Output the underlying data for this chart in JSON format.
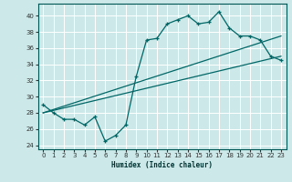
{
  "xlabel": "Humidex (Indice chaleur)",
  "background_color": "#cce8e8",
  "grid_color": "#ffffff",
  "line_color": "#006666",
  "xlim": [
    -0.5,
    23.5
  ],
  "ylim": [
    23.5,
    41.5
  ],
  "yticks": [
    24,
    26,
    28,
    30,
    32,
    34,
    36,
    38,
    40
  ],
  "xticks": [
    0,
    1,
    2,
    3,
    4,
    5,
    6,
    7,
    8,
    9,
    10,
    11,
    12,
    13,
    14,
    15,
    16,
    17,
    18,
    19,
    20,
    21,
    22,
    23
  ],
  "line1_x": [
    0,
    1,
    2,
    3,
    4,
    5,
    6,
    7,
    8,
    9,
    10,
    11,
    12,
    13,
    14,
    15,
    16,
    17,
    18,
    19,
    20,
    21,
    22,
    23
  ],
  "line1_y": [
    29.0,
    28.0,
    27.2,
    27.2,
    26.5,
    27.5,
    24.5,
    25.2,
    26.5,
    32.5,
    37.0,
    37.2,
    39.0,
    39.5,
    40.0,
    39.0,
    39.2,
    40.5,
    38.5,
    37.5,
    37.5,
    37.0,
    35.0,
    34.5
  ],
  "line2_x": [
    0,
    23
  ],
  "line2_y": [
    28.0,
    37.5
  ],
  "line3_x": [
    0,
    23
  ],
  "line3_y": [
    28.0,
    35.0
  ]
}
